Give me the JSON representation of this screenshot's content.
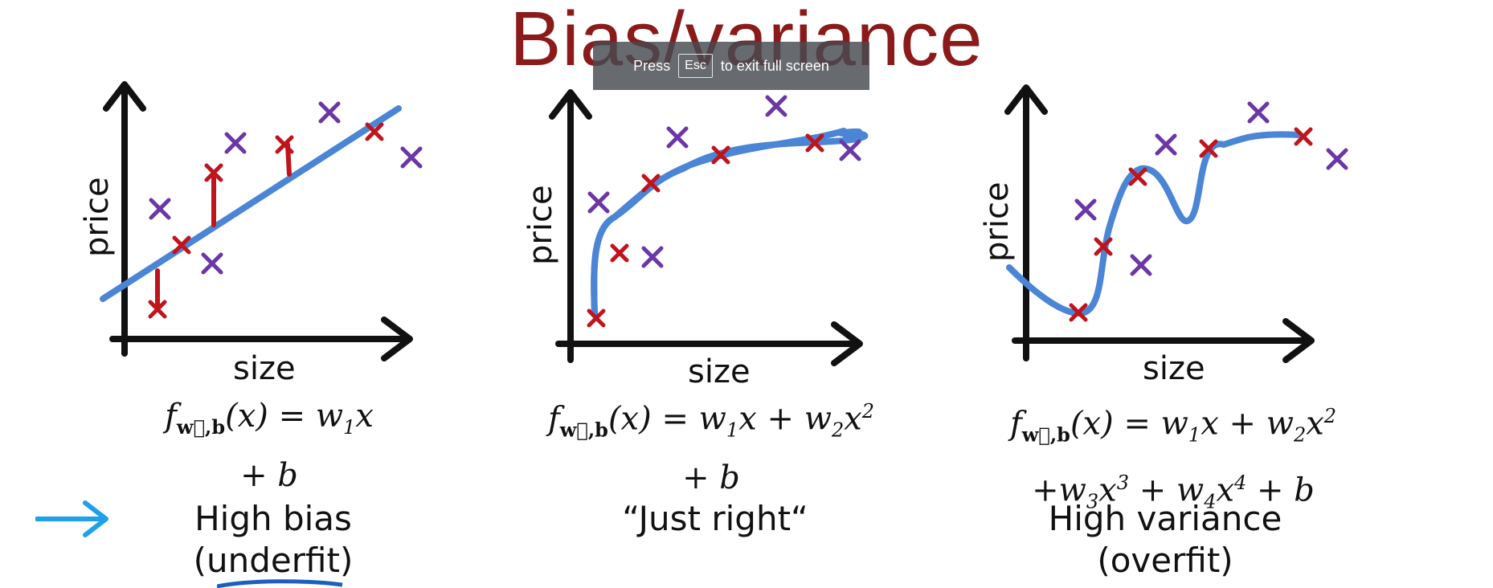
{
  "title": "Bias/variance",
  "fullscreen_toast": {
    "before": "Press",
    "key": "Esc",
    "after": "to exit full screen"
  },
  "colors": {
    "title": "#8b1a1a",
    "curve": "#4a85d6",
    "train_marker": "#c0141c",
    "other_marker": "#6b36a6",
    "arrow": "#1ea0ea"
  },
  "icons": {
    "pointer": "arrow-right-icon",
    "markers": "cross-icon"
  },
  "panels": [
    {
      "x_label": "size",
      "y_label": "price",
      "formula_line1": "f⃗w,b(x) = w₁x",
      "formula_line2": "+ b",
      "verdict_line1": "High bias",
      "verdict_line2": "(underfit)"
    },
    {
      "x_label": "size",
      "y_label": "price",
      "formula_line1": "f⃗w,b(x) = w₁x + w₂x²",
      "formula_line2": "+ b",
      "verdict_line1": "“Just right“",
      "verdict_line2": ""
    },
    {
      "x_label": "size",
      "y_label": "price",
      "formula_line1": "f⃗w,b(x) = w₁x + w₂x²",
      "formula_line2": "+w₃x³ + w₄x⁴ + b",
      "verdict_line1": "High variance",
      "verdict_line2": "(overfit)"
    }
  ]
}
